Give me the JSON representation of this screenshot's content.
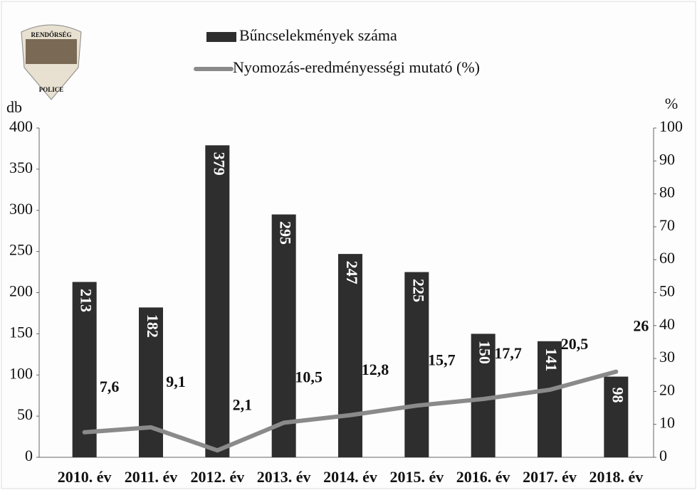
{
  "chart_data": {
    "type": "combo",
    "logo": {
      "top": "RENDŐRSÉG",
      "bottom": "POLICE"
    },
    "y_label": "db",
    "y2_label": "%",
    "categories": [
      "2010. év",
      "2011. év",
      "2012. év",
      "2013. év",
      "2014. év",
      "2015. év",
      "2016. év",
      "2017. év",
      "2018. év"
    ],
    "series": [
      {
        "name": "Bűncselekmények száma",
        "type": "bar",
        "color": "#2e2e2e",
        "values": [
          213,
          182,
          379,
          295,
          247,
          225,
          150,
          141,
          98
        ]
      },
      {
        "name": "Nyomozás-eredményességi mutató (%)",
        "type": "line",
        "color": "#8a8a8a",
        "axis": "y2",
        "values": [
          7.6,
          9.1,
          2.1,
          10.5,
          12.8,
          15.7,
          17.7,
          20.5,
          26
        ],
        "value_labels": [
          "7,6",
          "9,1",
          "2,1",
          "10,5",
          "12,8",
          "15,7",
          "17,7",
          "20,5",
          "26"
        ]
      }
    ],
    "ylim": [
      0,
      400
    ],
    "yticks": [
      0,
      50,
      100,
      150,
      200,
      250,
      300,
      350,
      400
    ],
    "y2lim": [
      0,
      100
    ],
    "y2ticks": [
      0,
      10,
      20,
      30,
      40,
      50,
      60,
      70,
      80,
      90,
      100
    ],
    "grid": false
  }
}
